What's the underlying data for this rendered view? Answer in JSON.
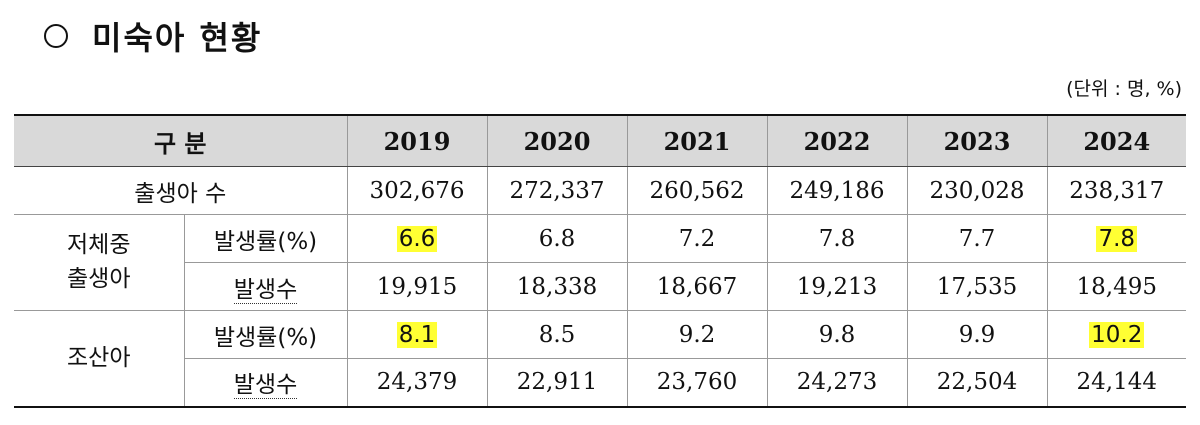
{
  "title": "미숙아 현황",
  "unit_note": "(단위 : 명, %)",
  "table": {
    "header_label": "구 분",
    "years": [
      "2019",
      "2020",
      "2021",
      "2022",
      "2023",
      "2024"
    ],
    "births_label": "출생아 수",
    "births": [
      "302,676",
      "272,337",
      "260,562",
      "249,186",
      "230,028",
      "238,317"
    ],
    "lbw": {
      "group_line1": "저체중",
      "group_line2": "출생아",
      "rate_label": "발생률(%)",
      "rate": [
        "6.6",
        "6.8",
        "7.2",
        "7.8",
        "7.7",
        "7.8"
      ],
      "count_label": "발생수",
      "count": [
        "19,915",
        "18,338",
        "18,667",
        "19,213",
        "17,535",
        "18,495"
      ]
    },
    "preterm": {
      "group_label": "조산아",
      "rate_label": "발생률(%)",
      "rate": [
        "8.1",
        "8.5",
        "9.2",
        "9.8",
        "9.9",
        "10.2"
      ],
      "count_label": "발생수",
      "count": [
        "24,379",
        "22,911",
        "23,760",
        "24,273",
        "22,504",
        "24,144"
      ]
    }
  },
  "highlight_color": "#ffff33"
}
